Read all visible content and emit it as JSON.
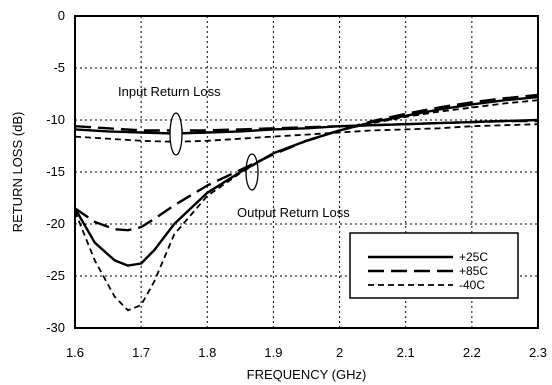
{
  "chart_data": {
    "type": "line",
    "title": "",
    "xlabel": "FREQUENCY (GHz)",
    "ylabel": "RETURN LOSS (dB)",
    "xlim": [
      1.6,
      2.3
    ],
    "ylim": [
      -30,
      0
    ],
    "xticks": [
      "1.6",
      "1.7",
      "1.8",
      "1.9",
      "2",
      "2.1",
      "2.2",
      "2.3"
    ],
    "yticks": [
      "0",
      "-5",
      "-10",
      "-15",
      "-20",
      "-25",
      "-30"
    ],
    "grid": true,
    "legend_position": "bottom-right",
    "annotations": [
      "Input Return Loss",
      "Output Return Loss"
    ],
    "series": [
      {
        "name": "+25C",
        "line_style": "solid",
        "groups": [
          {
            "label": "Input Return Loss",
            "x": [
              1.6,
              1.65,
              1.7,
              1.75,
              1.8,
              1.85,
              1.9,
              1.95,
              2.0,
              2.05,
              2.1,
              2.15,
              2.2,
              2.25,
              2.3
            ],
            "y": [
              -10.9,
              -11.1,
              -11.2,
              -11.3,
              -11.2,
              -11.1,
              -10.9,
              -10.8,
              -10.6,
              -10.5,
              -10.4,
              -10.3,
              -10.2,
              -10.1,
              -10.0
            ]
          },
          {
            "label": "Output Return Loss",
            "x": [
              1.6,
              1.63,
              1.66,
              1.68,
              1.7,
              1.72,
              1.75,
              1.8,
              1.85,
              1.9,
              1.95,
              2.0,
              2.05,
              2.1,
              2.15,
              2.2,
              2.25,
              2.3
            ],
            "y": [
              -18.5,
              -21.8,
              -23.5,
              -24.0,
              -23.8,
              -22.5,
              -20.0,
              -17.0,
              -15.0,
              -13.2,
              -12.0,
              -11.0,
              -10.2,
              -9.6,
              -9.0,
              -8.5,
              -8.1,
              -7.8
            ]
          }
        ]
      },
      {
        "name": "+85C",
        "line_style": "long-dash",
        "groups": [
          {
            "label": "Input Return Loss",
            "x": [
              1.6,
              1.65,
              1.7,
              1.75,
              1.8,
              1.85,
              1.9,
              1.95,
              2.0,
              2.05,
              2.1,
              2.15,
              2.2,
              2.25,
              2.3
            ],
            "y": [
              -10.6,
              -10.8,
              -11.0,
              -11.0,
              -11.0,
              -10.9,
              -10.8,
              -10.7,
              -10.6,
              -10.5,
              -10.4,
              -10.3,
              -10.2,
              -10.1,
              -10.1
            ]
          },
          {
            "label": "Output Return Loss",
            "x": [
              1.6,
              1.63,
              1.66,
              1.68,
              1.7,
              1.72,
              1.75,
              1.8,
              1.85,
              1.9,
              1.95,
              2.0,
              2.05,
              2.1,
              2.15,
              2.2,
              2.25,
              2.3
            ],
            "y": [
              -18.5,
              -19.8,
              -20.5,
              -20.6,
              -20.3,
              -19.5,
              -18.2,
              -16.3,
              -14.8,
              -13.3,
              -12.0,
              -11.0,
              -10.1,
              -9.4,
              -8.8,
              -8.3,
              -7.9,
              -7.6
            ]
          }
        ]
      },
      {
        "name": "-40C",
        "line_style": "short-dash",
        "groups": [
          {
            "label": "Input Return Loss",
            "x": [
              1.6,
              1.65,
              1.7,
              1.75,
              1.8,
              1.85,
              1.9,
              1.95,
              2.0,
              2.05,
              2.1,
              2.15,
              2.2,
              2.25,
              2.3
            ],
            "y": [
              -11.6,
              -11.8,
              -12.0,
              -12.1,
              -12.0,
              -11.8,
              -11.6,
              -11.4,
              -11.2,
              -11.0,
              -10.9,
              -10.8,
              -10.6,
              -10.5,
              -10.4
            ]
          },
          {
            "label": "Output Return Loss",
            "x": [
              1.6,
              1.63,
              1.66,
              1.68,
              1.7,
              1.72,
              1.75,
              1.8,
              1.85,
              1.9,
              1.95,
              2.0,
              2.05,
              2.1,
              2.15,
              2.2,
              2.25,
              2.3
            ],
            "y": [
              -18.8,
              -23.5,
              -27.0,
              -28.3,
              -27.8,
              -25.5,
              -21.0,
              -17.3,
              -15.1,
              -13.2,
              -12.0,
              -11.0,
              -10.3,
              -9.7,
              -9.2,
              -8.8,
              -8.4,
              -8.1
            ]
          }
        ]
      }
    ]
  }
}
